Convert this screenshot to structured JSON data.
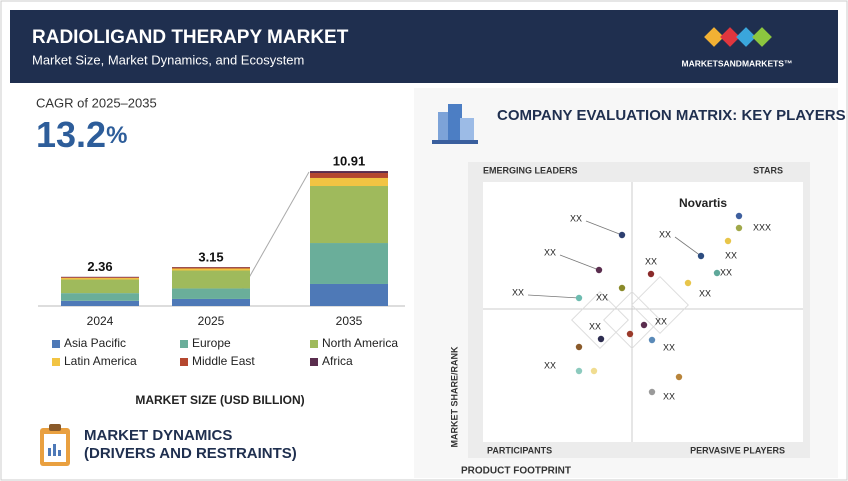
{
  "header": {
    "title": "RADIOLIGAND THERAPY MARKET",
    "subtitle": "Market Size, Market Dynamics, and Ecosystem",
    "logo": "MARKETSANDMARKETS™"
  },
  "cagr": {
    "label": "CAGR of 2025–2035",
    "value": "13.2",
    "unit": "%"
  },
  "chart_data": [
    {
      "type": "stacked_bar",
      "title": "MARKET SIZE (USD BILLION)",
      "categories": [
        "2024",
        "2025",
        "2035"
      ],
      "totals": [
        2.36,
        3.15,
        10.91
      ],
      "series": [
        {
          "name": "Asia Pacific",
          "color": "#4e79b7",
          "values": [
            0.42,
            0.57,
            1.78
          ]
        },
        {
          "name": "Europe",
          "color": "#6aae9a",
          "values": [
            0.62,
            0.85,
            3.31
          ]
        },
        {
          "name": "North America",
          "color": "#9fba5c",
          "values": [
            1.1,
            1.45,
            4.61
          ]
        },
        {
          "name": "Latin America",
          "color": "#f2c443",
          "values": [
            0.12,
            0.16,
            0.65
          ]
        },
        {
          "name": "Middle East",
          "color": "#b5472f",
          "values": [
            0.07,
            0.09,
            0.4
          ]
        },
        {
          "name": "Africa",
          "color": "#5a2d4e",
          "values": [
            0.03,
            0.03,
            0.16
          ]
        }
      ]
    },
    {
      "type": "matrix",
      "title": "COMPANY EVALUATION MATRIX: KEY PLAYERS",
      "quadrants": [
        "EMERGING LEADERS",
        "STARS",
        "PARTICIPANTS",
        "PERVASIVE PLAYERS"
      ],
      "y_label": "MARKET SHARE/RANK",
      "x_label": "PRODUCT FOOTPRINT",
      "points": [
        {
          "label": "Novartis",
          "color": "#3e5f9e"
        },
        {
          "label": "XXX",
          "color": "#a0a84a"
        },
        {
          "label": "XX",
          "color": "#e8c54a"
        },
        {
          "label": "XX",
          "color": "#2d4d80"
        },
        {
          "label": "XX",
          "color": "#5fa89a"
        },
        {
          "label": "XX",
          "color": "#e8c54a"
        },
        {
          "label": "XX",
          "color": "#2d3f70"
        },
        {
          "label": "XX",
          "color": "#5a2d4e"
        },
        {
          "label": "XX",
          "color": "#6dbcb0"
        },
        {
          "label": "XX",
          "color": "#8a8a2a"
        },
        {
          "label": "XX",
          "color": "#8a2a2a"
        },
        {
          "label": "XX",
          "color": "#5a2d4e"
        },
        {
          "color": "#9a3a2a"
        },
        {
          "label": "XX",
          "color": "#5a8ab8"
        },
        {
          "label": "XX",
          "color": "#2d2d50"
        },
        {
          "color": "#8a5a2a"
        },
        {
          "color": "#8ccabe"
        },
        {
          "label": "XX",
          "color": "#f0dc90"
        },
        {
          "color": "#b8843a"
        },
        {
          "label": "XX",
          "color": "#9a9a9a"
        }
      ]
    }
  ],
  "dynamics": {
    "title": [
      "MARKET DYNAMICS",
      "(DRIVERS AND RESTRAINTS)"
    ]
  }
}
